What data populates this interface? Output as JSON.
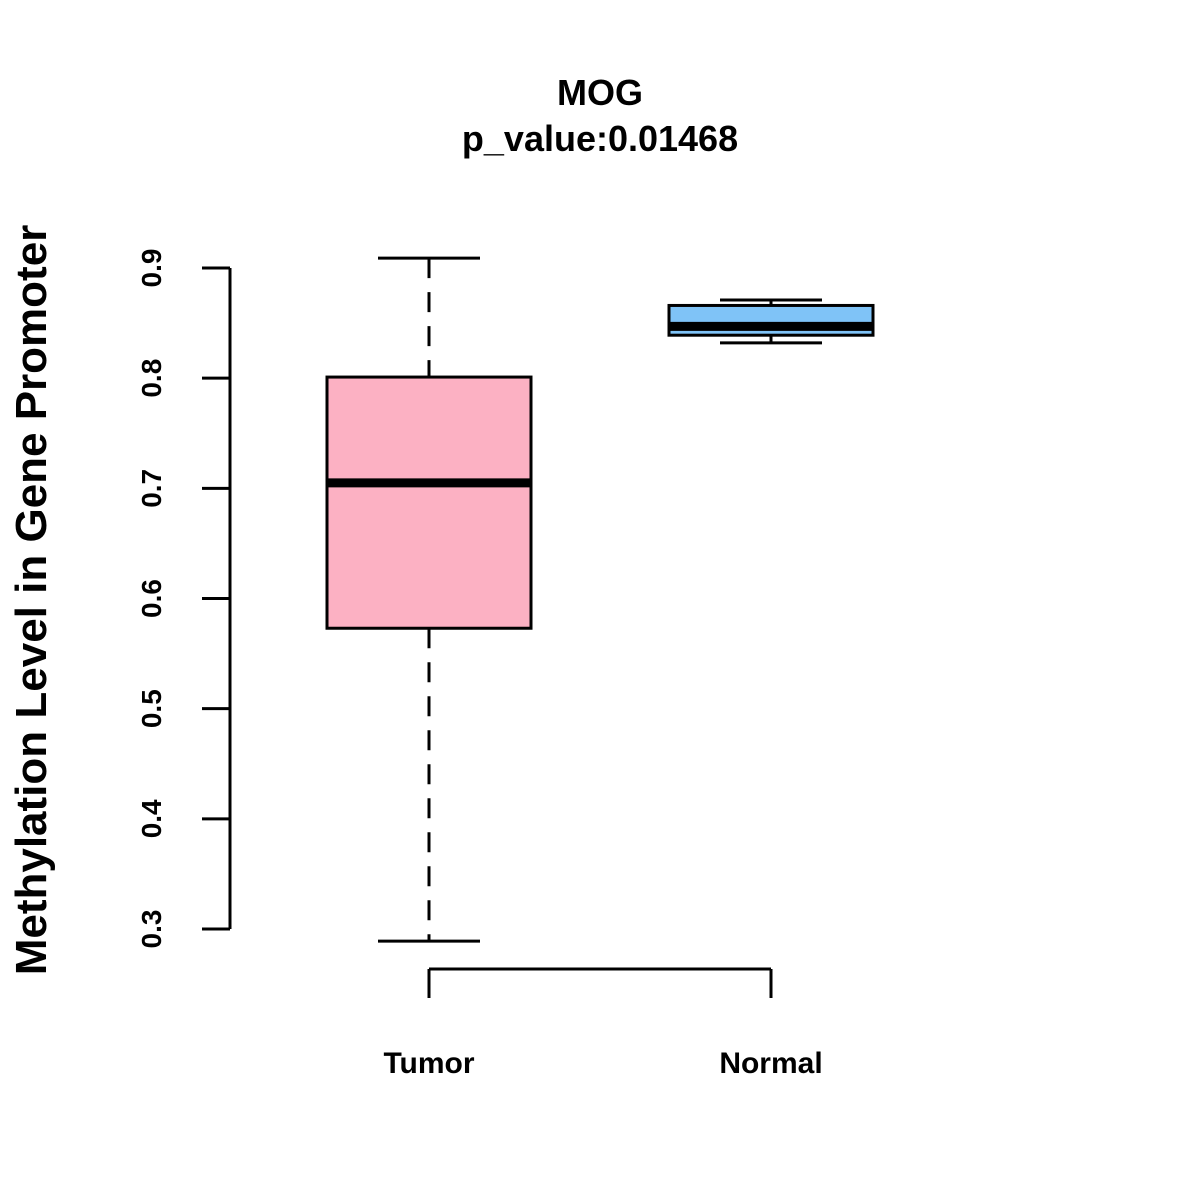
{
  "chart_data": {
    "type": "boxplot",
    "title": "MOG",
    "subtitle": "p_value:0.01468",
    "xlabel": "",
    "ylabel": "Methylation Level in Gene Promoter",
    "ylim": [
      0.3,
      0.9
    ],
    "yticks": [
      0.3,
      0.4,
      0.5,
      0.6,
      0.7,
      0.8,
      0.9
    ],
    "ytick_labels": [
      "0.3",
      "0.4",
      "0.5",
      "0.6",
      "0.7",
      "0.8",
      "0.9"
    ],
    "grid": false,
    "categories": [
      "Tumor",
      "Normal"
    ],
    "boxes": [
      {
        "name": "Tumor",
        "min": 0.289,
        "q1": 0.573,
        "median": 0.705,
        "q3": 0.801,
        "max": 0.909,
        "color": "#fcb1c3"
      },
      {
        "name": "Normal",
        "min": 0.832,
        "q1": 0.839,
        "median": 0.847,
        "q3": 0.866,
        "max": 0.871,
        "color": "#7fc3f7"
      }
    ]
  }
}
